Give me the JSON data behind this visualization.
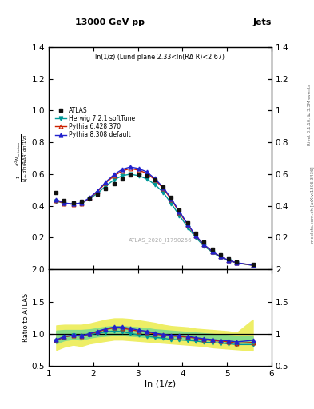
{
  "title": "13000 GeV pp",
  "title_right": "Jets",
  "panel_label": "ln(1/z) (Lund plane 2.33<ln(RΔ R)<2.67)",
  "watermark": "ATLAS_2020_I1790256",
  "ylabel_main": "$\\frac{1}{N_{\\mathrm{jets}}}\\frac{d^2 N_{\\mathrm{emissions}}}{d\\ln(R/\\Delta R)\\,d\\ln(1/z)}$",
  "ylabel_ratio": "Ratio to ATLAS",
  "xlabel": "ln (1/z)",
  "right_label_top": "Rivet 3.1.10, ≥ 3.3M events",
  "right_label_bot": "mcplots.cern.ch [arXiv:1306.3436]",
  "xlim": [
    1.0,
    6.0
  ],
  "ylim_main": [
    0.0,
    1.4
  ],
  "ylim_ratio": [
    0.5,
    2.0
  ],
  "yticks_main": [
    0.2,
    0.4,
    0.6,
    0.8,
    1.0,
    1.2,
    1.4
  ],
  "yticks_ratio": [
    0.5,
    1.0,
    1.5,
    2.0
  ],
  "xticks": [
    1,
    2,
    3,
    4,
    5,
    6
  ],
  "x_data": [
    1.17,
    1.35,
    1.55,
    1.73,
    1.92,
    2.1,
    2.28,
    2.47,
    2.65,
    2.83,
    3.02,
    3.2,
    3.38,
    3.57,
    3.75,
    3.93,
    4.12,
    4.3,
    4.48,
    4.67,
    4.85,
    5.03,
    5.22,
    5.58
  ],
  "atlas_y": [
    0.485,
    0.435,
    0.42,
    0.43,
    0.45,
    0.475,
    0.51,
    0.54,
    0.57,
    0.595,
    0.6,
    0.59,
    0.565,
    0.52,
    0.455,
    0.375,
    0.295,
    0.225,
    0.17,
    0.125,
    0.09,
    0.065,
    0.048,
    0.03
  ],
  "herwig_y": [
    0.43,
    0.415,
    0.41,
    0.415,
    0.445,
    0.48,
    0.525,
    0.565,
    0.59,
    0.6,
    0.59,
    0.57,
    0.535,
    0.485,
    0.415,
    0.34,
    0.265,
    0.2,
    0.148,
    0.108,
    0.077,
    0.055,
    0.04,
    0.025
  ],
  "pythia6_y": [
    0.435,
    0.415,
    0.41,
    0.415,
    0.45,
    0.49,
    0.545,
    0.59,
    0.62,
    0.635,
    0.625,
    0.605,
    0.565,
    0.51,
    0.44,
    0.36,
    0.28,
    0.21,
    0.155,
    0.112,
    0.08,
    0.057,
    0.041,
    0.026
  ],
  "pythia8_y": [
    0.44,
    0.418,
    0.412,
    0.418,
    0.452,
    0.495,
    0.55,
    0.598,
    0.63,
    0.645,
    0.635,
    0.614,
    0.572,
    0.516,
    0.445,
    0.365,
    0.284,
    0.212,
    0.157,
    0.114,
    0.081,
    0.058,
    0.042,
    0.027
  ],
  "herwig_ratio": [
    0.886,
    0.954,
    0.976,
    0.965,
    0.989,
    1.011,
    1.029,
    1.046,
    1.035,
    1.008,
    0.983,
    0.966,
    0.947,
    0.933,
    0.912,
    0.907,
    0.898,
    0.889,
    0.871,
    0.864,
    0.856,
    0.846,
    0.833,
    0.833
  ],
  "pythia6_ratio": [
    0.897,
    0.954,
    0.976,
    0.965,
    1.0,
    1.032,
    1.069,
    1.093,
    1.088,
    1.067,
    1.042,
    1.025,
    1.0,
    0.981,
    0.967,
    0.96,
    0.949,
    0.933,
    0.912,
    0.896,
    0.889,
    0.877,
    0.854,
    0.867
  ],
  "pythia8_ratio": [
    0.907,
    0.961,
    0.981,
    0.972,
    1.004,
    1.042,
    1.078,
    1.107,
    1.105,
    1.084,
    1.058,
    1.041,
    1.012,
    0.992,
    0.978,
    0.973,
    0.962,
    0.942,
    0.924,
    0.912,
    0.9,
    0.892,
    0.875,
    0.9
  ],
  "green_band_lo": [
    0.85,
    0.9,
    0.92,
    0.91,
    0.94,
    0.96,
    0.97,
    0.98,
    0.98,
    0.97,
    0.96,
    0.95,
    0.94,
    0.93,
    0.93,
    0.92,
    0.91,
    0.9,
    0.9,
    0.89,
    0.88,
    0.87,
    0.86,
    0.85
  ],
  "green_band_hi": [
    1.05,
    1.06,
    1.06,
    1.06,
    1.07,
    1.09,
    1.11,
    1.12,
    1.12,
    1.11,
    1.1,
    1.09,
    1.07,
    1.06,
    1.05,
    1.04,
    1.03,
    1.02,
    1.01,
    1.0,
    0.99,
    0.98,
    0.97,
    0.96
  ],
  "yellow_band_lo": [
    0.75,
    0.8,
    0.83,
    0.81,
    0.85,
    0.87,
    0.89,
    0.91,
    0.91,
    0.9,
    0.89,
    0.88,
    0.87,
    0.86,
    0.85,
    0.84,
    0.83,
    0.82,
    0.81,
    0.79,
    0.78,
    0.77,
    0.76,
    0.74
  ],
  "yellow_band_hi": [
    1.13,
    1.14,
    1.14,
    1.14,
    1.16,
    1.19,
    1.22,
    1.24,
    1.24,
    1.23,
    1.21,
    1.19,
    1.17,
    1.14,
    1.12,
    1.11,
    1.1,
    1.08,
    1.07,
    1.06,
    1.05,
    1.04,
    1.02,
    1.22
  ],
  "herwig_color": "#009999",
  "pythia6_color": "#cc2200",
  "pythia8_color": "#2222cc",
  "atlas_color": "#111111",
  "green_color": "#88dd88",
  "yellow_color": "#eeee66"
}
